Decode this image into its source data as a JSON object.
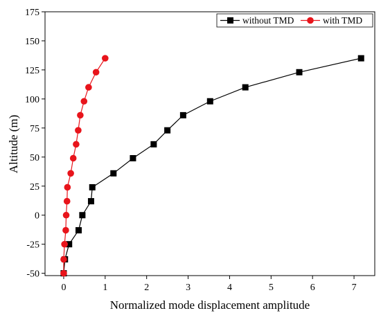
{
  "chart_data": {
    "type": "line",
    "xlabel": "Normalized mode displacement amplitude",
    "ylabel": "Altitude (m)",
    "xlim": [
      -0.45,
      7.5
    ],
    "ylim": [
      -52,
      175
    ],
    "xticks": [
      0,
      1,
      2,
      3,
      4,
      5,
      6,
      7
    ],
    "yticks": [
      -50,
      -25,
      0,
      25,
      50,
      75,
      100,
      125,
      150,
      175
    ],
    "grid": false,
    "legend_position": "top-right",
    "series": [
      {
        "name": "without TMD",
        "color": "#000000",
        "marker": "square",
        "points": [
          [
            0.0,
            -50
          ],
          [
            0.03,
            -38
          ],
          [
            0.13,
            -25
          ],
          [
            0.36,
            -13
          ],
          [
            0.45,
            0
          ],
          [
            0.66,
            12
          ],
          [
            0.69,
            24
          ],
          [
            1.2,
            36
          ],
          [
            1.67,
            49
          ],
          [
            2.17,
            61
          ],
          [
            2.5,
            73
          ],
          [
            2.88,
            86
          ],
          [
            3.53,
            98
          ],
          [
            4.38,
            110
          ],
          [
            5.68,
            123
          ],
          [
            7.17,
            135
          ]
        ]
      },
      {
        "name": "with TMD",
        "color": "#e8141b",
        "marker": "circle",
        "points": [
          [
            0.0,
            -50
          ],
          [
            0.0,
            -38
          ],
          [
            0.02,
            -25
          ],
          [
            0.05,
            -13
          ],
          [
            0.06,
            0
          ],
          [
            0.08,
            12
          ],
          [
            0.09,
            24
          ],
          [
            0.17,
            36
          ],
          [
            0.23,
            49
          ],
          [
            0.3,
            61
          ],
          [
            0.35,
            73
          ],
          [
            0.4,
            86
          ],
          [
            0.49,
            98
          ],
          [
            0.6,
            110
          ],
          [
            0.78,
            123
          ],
          [
            1.0,
            135
          ]
        ]
      }
    ]
  }
}
